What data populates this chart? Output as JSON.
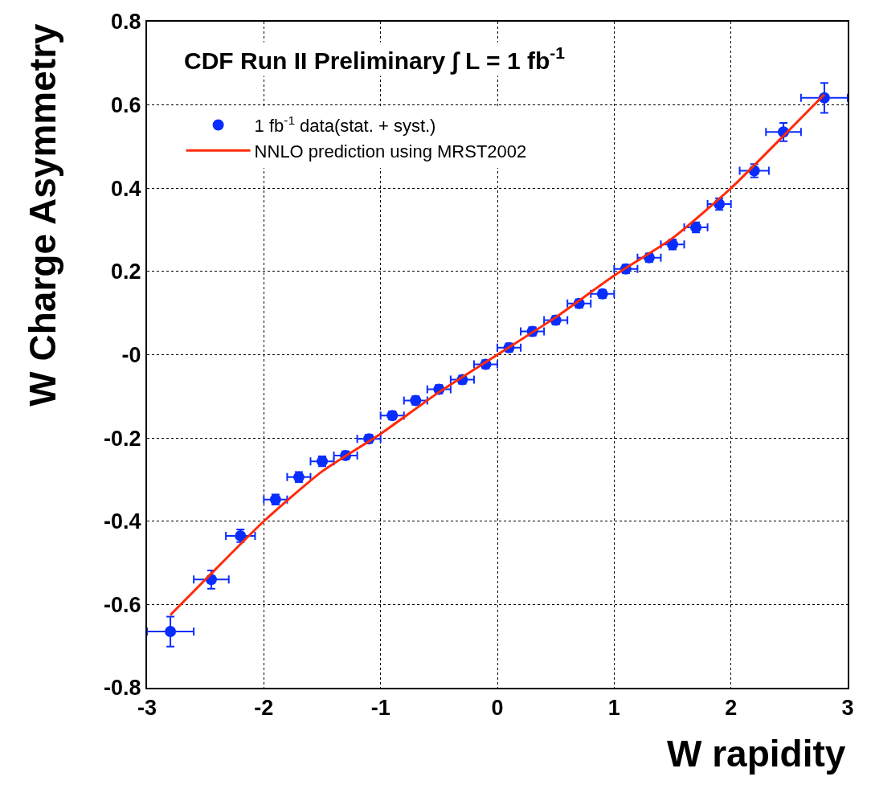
{
  "chart_data": {
    "type": "scatter",
    "xlabel": "W rapidity",
    "ylabel": "W Charge Asymmetry",
    "annotations": [
      "CDF Run II Preliminary ∫ L = 1 fb$^{-1}$"
    ],
    "series": [
      {
        "name": "1 fb$^{-1}$ data(stat. + syst.)",
        "color": "#0a2dff",
        "marker": "circle",
        "x": [
          -2.8,
          -2.45,
          -2.2,
          -1.9,
          -1.7,
          -1.5,
          -1.3,
          -1.1,
          -0.9,
          -0.7,
          -0.5,
          -0.3,
          -0.1,
          0.1,
          0.3,
          0.5,
          0.7,
          0.9,
          1.1,
          1.3,
          1.5,
          1.7,
          1.9,
          2.2,
          2.45,
          2.8
        ],
        "values": [
          -0.665,
          -0.54,
          -0.435,
          -0.348,
          -0.294,
          -0.256,
          -0.242,
          -0.202,
          -0.146,
          -0.11,
          -0.083,
          -0.06,
          -0.023,
          0.017,
          0.056,
          0.083,
          0.123,
          0.146,
          0.206,
          0.233,
          0.265,
          0.306,
          0.362,
          0.442,
          0.535,
          0.617
        ],
        "errors": [
          0.036,
          0.022,
          0.015,
          0.012,
          0.012,
          0.012,
          0.01,
          0.01,
          0.01,
          0.01,
          0.01,
          0.01,
          0.01,
          0.01,
          0.01,
          0.01,
          0.01,
          0.01,
          0.01,
          0.01,
          0.012,
          0.012,
          0.014,
          0.016,
          0.022,
          0.036
        ],
        "xerrors": [
          0.2,
          0.15,
          0.125,
          0.1,
          0.1,
          0.1,
          0.1,
          0.1,
          0.1,
          0.1,
          0.1,
          0.1,
          0.1,
          0.1,
          0.1,
          0.1,
          0.1,
          0.1,
          0.1,
          0.1,
          0.1,
          0.1,
          0.1,
          0.125,
          0.15,
          0.2
        ]
      },
      {
        "name": "NNLO prediction using MRST2002",
        "type": "line",
        "color": "#ff2a0a",
        "marker": "none",
        "line_style": "solid",
        "x": [
          -2.8,
          -2.5,
          -2.0,
          -1.5,
          -1.0,
          -0.5,
          0,
          0.5,
          1.0,
          1.5,
          2.0,
          2.5,
          2.8
        ],
        "values": [
          -0.625,
          -0.54,
          -0.4,
          -0.28,
          -0.19,
          -0.09,
          0,
          0.09,
          0.19,
          0.28,
          0.4,
          0.54,
          0.625
        ]
      }
    ],
    "xlim": [
      -3,
      3
    ],
    "xticks": [
      -3,
      -2,
      -1,
      0,
      1,
      2,
      3
    ],
    "ylim": [
      -0.8,
      0.8
    ],
    "yticks": [
      -0.8,
      -0.6,
      -0.4,
      -0.2,
      {
        "value": 0,
        "label": "-0"
      },
      0.2,
      0.4,
      0.6,
      0.8
    ],
    "grid": true,
    "legend": "top left"
  }
}
